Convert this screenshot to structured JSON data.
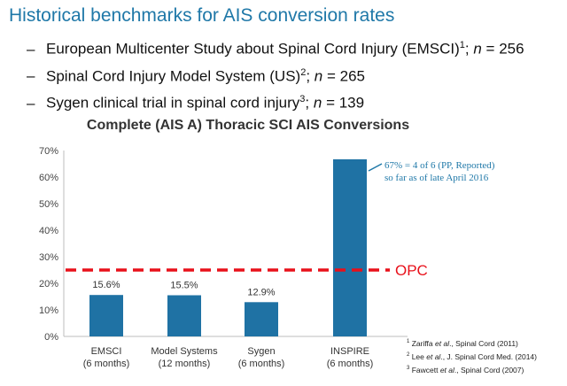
{
  "slide": {
    "title": "Historical benchmarks for AIS conversion rates",
    "bullets": [
      {
        "dash": "–",
        "text": "European Multicenter Study about Spinal Cord Injury (EMSCI)",
        "sup": "1",
        "sep": "; ",
        "n_label": "n",
        "n_rest": " = 256"
      },
      {
        "dash": "–",
        "text": "Spinal Cord Injury Model System (US)",
        "sup": "2",
        "sep": "; ",
        "n_label": "n",
        "n_rest": " = 265"
      },
      {
        "dash": "–",
        "text": "Sygen clinical trial in spinal cord injury",
        "sup": "3",
        "sep": "; ",
        "n_label": "n",
        "n_rest": " = 139"
      }
    ],
    "references": [
      {
        "sup": "1",
        "pre": " Zariffa ",
        "etal": "et al",
        "post": "., Spinal Cord (2011)"
      },
      {
        "sup": "2",
        "pre": " Lee ",
        "etal": "et al",
        "post": "., J. Spinal Cord Med. (2014)"
      },
      {
        "sup": "3",
        "pre": " Fawcett ",
        "etal": "et al",
        "post": "., Spinal Cord (2007)"
      }
    ]
  },
  "chart_data": {
    "type": "bar",
    "title": "Complete (AIS A) Thoracic SCI AIS Conversions",
    "categories": [
      {
        "line1": "EMSCI",
        "line2": "(6 months)"
      },
      {
        "line1": "Model Systems",
        "line2": "(12 months)"
      },
      {
        "line1": "Sygen",
        "line2": "(6 months)"
      },
      {
        "line1": "INSPIRE",
        "line2": "(6 months)"
      }
    ],
    "values": [
      15.6,
      15.5,
      12.9,
      66.7
    ],
    "data_labels": [
      "15.6%",
      "15.5%",
      "12.9%",
      ""
    ],
    "ylim": [
      0,
      70
    ],
    "yticks": [
      "0%",
      "10%",
      "20%",
      "30%",
      "40%",
      "50%",
      "60%",
      "70%"
    ],
    "bar_color": "#1f72a4",
    "annotation": {
      "line1": "67% = 4 of 6 (PP, Reported)",
      "line2": "so far as of late April 2016",
      "color": "#1f78a8"
    },
    "reference_line": {
      "value": 25,
      "label": "OPC",
      "color": "#e8101a"
    }
  }
}
